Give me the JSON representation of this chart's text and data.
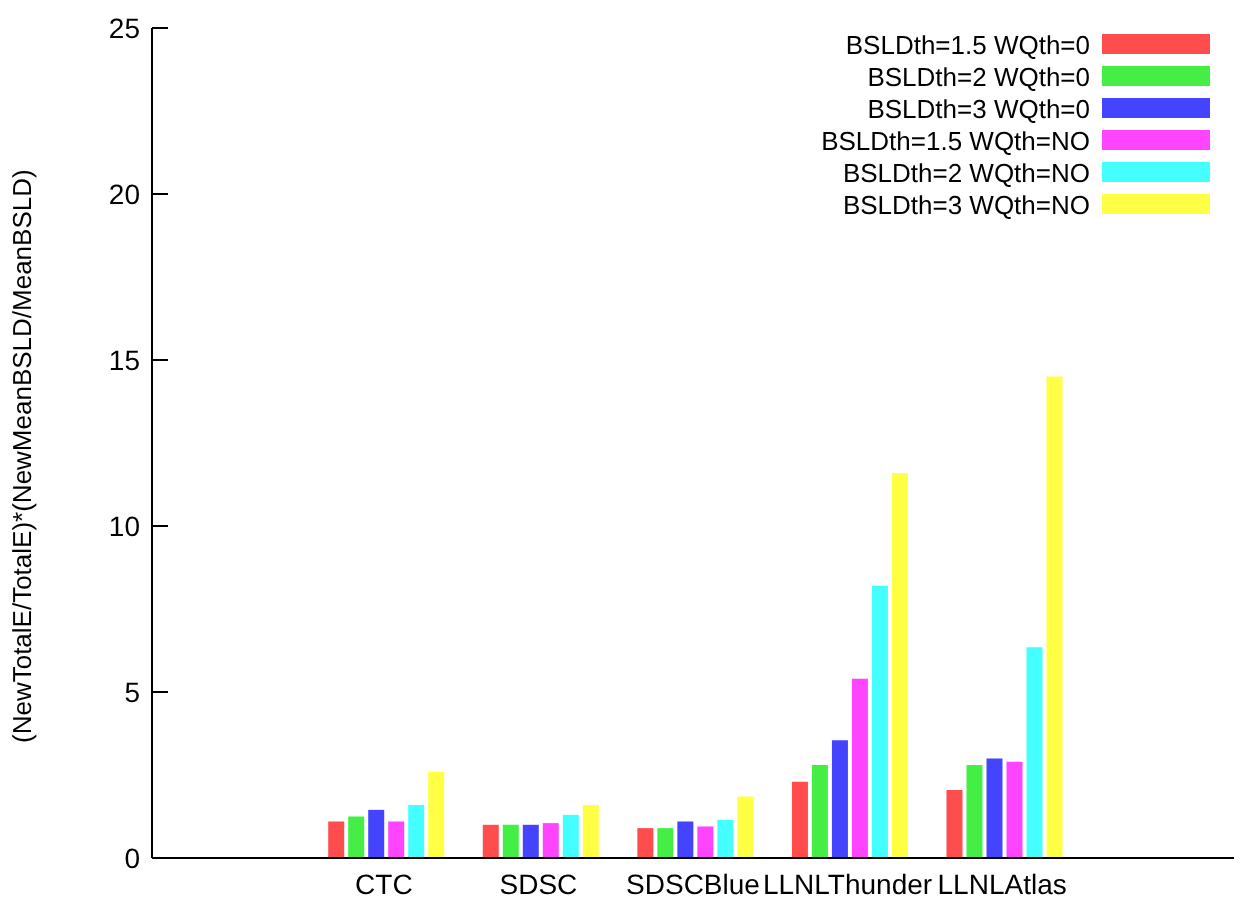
{
  "chart_data": {
    "type": "bar",
    "ylabel": "(NewTotalE/TotalE)*(NewMeanBSLD/MeanBSLD)",
    "categories": [
      null,
      "CTC",
      "SDSC",
      "SDSCBlue",
      "LLNLThunder",
      "LLNLAtlas",
      null
    ],
    "ylim": [
      0,
      25
    ],
    "yticks": [
      0,
      5,
      10,
      15,
      20,
      25
    ],
    "grid": false,
    "legend": "top right",
    "series": [
      {
        "name": "BSLDth=1.5 WQth=0",
        "color": "#ff4d4d",
        "values": [
          null,
          1.1,
          1.0,
          0.9,
          2.3,
          2.05,
          null
        ]
      },
      {
        "name": "BSLDth=2 WQth=0",
        "color": "#44ee44",
        "values": [
          null,
          1.25,
          1.0,
          0.9,
          2.8,
          2.8,
          null
        ]
      },
      {
        "name": "BSLDth=3 WQth=0",
        "color": "#4444ff",
        "values": [
          null,
          1.45,
          1.0,
          1.1,
          3.55,
          3.0,
          null
        ]
      },
      {
        "name": "BSLDth=1.5 WQth=NO",
        "color": "#ff44ff",
        "values": [
          null,
          1.1,
          1.05,
          0.95,
          5.4,
          2.9,
          null
        ]
      },
      {
        "name": "BSLDth=2 WQth=NO",
        "color": "#44ffff",
        "values": [
          null,
          1.6,
          1.3,
          1.15,
          8.2,
          6.35,
          null
        ]
      },
      {
        "name": "BSLDth=3 WQth=NO",
        "color": "#ffff44",
        "values": [
          null,
          2.6,
          1.6,
          1.85,
          11.6,
          14.5,
          null
        ]
      }
    ]
  }
}
